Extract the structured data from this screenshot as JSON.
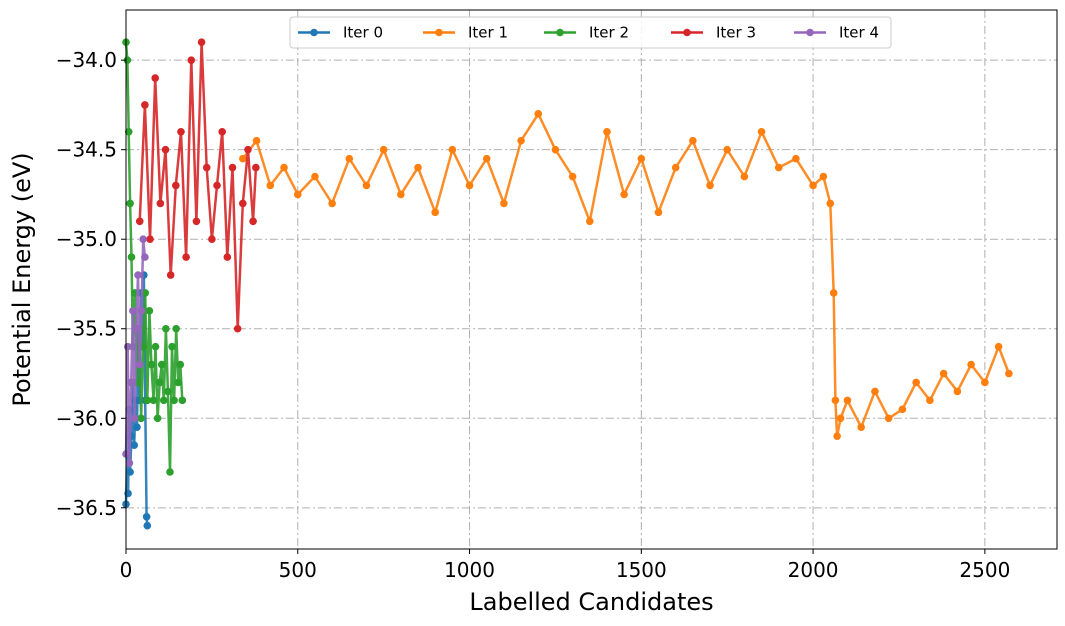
{
  "chart_data": {
    "type": "line",
    "title": "",
    "xlabel": "Labelled Candidates",
    "ylabel": "Potential Energy (eV)",
    "xlim": [
      0,
      2710
    ],
    "ylim": [
      -36.73,
      -33.72
    ],
    "grid": true,
    "legend": "top-center",
    "xticks": [
      {
        "value": 0,
        "label": "0"
      },
      {
        "value": 500,
        "label": "500"
      },
      {
        "value": 1000,
        "label": "1000"
      },
      {
        "value": 1500,
        "label": "1500"
      },
      {
        "value": 2000,
        "label": "2000"
      },
      {
        "value": 2500,
        "label": "2500"
      }
    ],
    "yticks": [
      {
        "value": -34.0,
        "label": "−34.0"
      },
      {
        "value": -34.5,
        "label": "−34.5"
      },
      {
        "value": -35.0,
        "label": "−35.0"
      },
      {
        "value": -35.5,
        "label": "−35.5"
      },
      {
        "value": -36.0,
        "label": "−36.0"
      },
      {
        "value": -36.5,
        "label": "−36.5"
      }
    ],
    "series": [
      {
        "name": "Iter 0",
        "color": "#1f77b4",
        "x": [
          0,
          3,
          6,
          9,
          12,
          16,
          20,
          24,
          28,
          32,
          36,
          40,
          44,
          48,
          52,
          56,
          60,
          62
        ],
        "y": [
          -36.48,
          -36.2,
          -36.42,
          -35.95,
          -36.3,
          -36.1,
          -35.8,
          -36.15,
          -35.9,
          -36.05,
          -35.5,
          -35.9,
          -35.3,
          -35.6,
          -35.2,
          -35.9,
          -36.55,
          -36.6
        ]
      },
      {
        "name": "Iter 1",
        "color": "#ff7f0e",
        "x": [
          340,
          380,
          420,
          460,
          500,
          550,
          600,
          650,
          700,
          750,
          800,
          850,
          900,
          950,
          1000,
          1050,
          1100,
          1150,
          1200,
          1250,
          1300,
          1350,
          1400,
          1450,
          1500,
          1550,
          1600,
          1650,
          1700,
          1750,
          1800,
          1850,
          1900,
          1950,
          2000,
          2030,
          2050,
          2060,
          2065,
          2070,
          2080,
          2100,
          2140,
          2180,
          2220,
          2260,
          2300,
          2340,
          2380,
          2420,
          2460,
          2500,
          2540,
          2570
        ],
        "y": [
          -34.55,
          -34.45,
          -34.7,
          -34.6,
          -34.75,
          -34.65,
          -34.8,
          -34.55,
          -34.7,
          -34.5,
          -34.75,
          -34.6,
          -34.85,
          -34.5,
          -34.7,
          -34.55,
          -34.8,
          -34.45,
          -34.3,
          -34.5,
          -34.65,
          -34.9,
          -34.4,
          -34.75,
          -34.55,
          -34.85,
          -34.6,
          -34.45,
          -34.7,
          -34.5,
          -34.65,
          -34.4,
          -34.6,
          -34.55,
          -34.7,
          -34.65,
          -34.8,
          -35.3,
          -35.9,
          -36.1,
          -36.0,
          -35.9,
          -36.05,
          -35.85,
          -36.0,
          -35.95,
          -35.8,
          -35.9,
          -35.75,
          -35.85,
          -35.7,
          -35.8,
          -35.6,
          -35.75
        ]
      },
      {
        "name": "Iter 2",
        "color": "#2ca02c",
        "x": [
          0,
          4,
          8,
          12,
          16,
          20,
          26,
          32,
          38,
          44,
          50,
          56,
          62,
          68,
          74,
          80,
          86,
          92,
          98,
          104,
          110,
          116,
          122,
          128,
          134,
          140,
          146,
          152,
          158,
          164
        ],
        "y": [
          -33.9,
          -34.0,
          -34.4,
          -34.8,
          -35.1,
          -35.6,
          -35.3,
          -35.8,
          -35.5,
          -36.0,
          -35.6,
          -35.3,
          -35.9,
          -35.4,
          -35.7,
          -35.9,
          -35.6,
          -36.0,
          -35.8,
          -35.7,
          -35.9,
          -35.5,
          -35.85,
          -36.3,
          -35.6,
          -35.9,
          -35.5,
          -35.8,
          -35.7,
          -35.9
        ]
      },
      {
        "name": "Iter 3",
        "color": "#d62728",
        "x": [
          40,
          55,
          70,
          85,
          100,
          115,
          130,
          145,
          160,
          175,
          190,
          205,
          220,
          235,
          250,
          265,
          280,
          295,
          310,
          325,
          340,
          355,
          370,
          378
        ],
        "y": [
          -34.9,
          -34.25,
          -35.0,
          -34.1,
          -34.8,
          -34.5,
          -35.2,
          -34.7,
          -34.4,
          -35.1,
          -34.0,
          -34.9,
          -33.9,
          -34.6,
          -35.0,
          -34.7,
          -34.4,
          -35.1,
          -34.6,
          -35.5,
          -34.8,
          -34.5,
          -34.9,
          -34.6
        ]
      },
      {
        "name": "Iter 4",
        "color": "#9467bd",
        "x": [
          0,
          5,
          10,
          15,
          20,
          25,
          30,
          35,
          40,
          45,
          50,
          55
        ],
        "y": [
          -36.2,
          -35.6,
          -36.25,
          -35.8,
          -35.4,
          -36.0,
          -35.5,
          -35.2,
          -35.7,
          -35.4,
          -35.0,
          -35.1
        ]
      }
    ]
  }
}
